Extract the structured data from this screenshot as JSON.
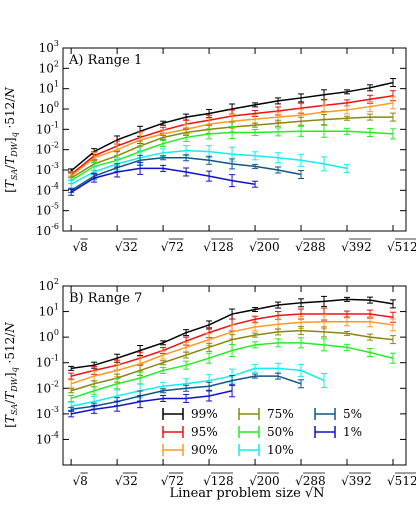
{
  "figure": {
    "shared_xlabel": "Linear problem size √N",
    "x_tick_labels": [
      "√8",
      "√32",
      "√72",
      "√128",
      "√200",
      "√288",
      "√392",
      "√512"
    ]
  },
  "legend": {
    "columns": 3,
    "entries": [
      {
        "name": "99%",
        "color": "#000000"
      },
      {
        "name": "95%",
        "color": "#ee1111"
      },
      {
        "name": "90%",
        "color": "#ff9922"
      },
      {
        "name": "75%",
        "color": "#888811"
      },
      {
        "name": "50%",
        "color": "#22ee22"
      },
      {
        "name": "10%",
        "color": "#11eeee"
      },
      {
        "name": "5%",
        "color": "#115588"
      },
      {
        "name": "1%",
        "color": "#1111cc"
      }
    ]
  },
  "chart_data": [
    {
      "type": "line",
      "title": "A) Range 1",
      "ylabel": "[T_SA/T_DW]_q · 512/N",
      "xlabel": "",
      "x_ticks": [
        8,
        32,
        72,
        128,
        200,
        288,
        392,
        512
      ],
      "x_tick_labels": [
        "√8",
        "√32",
        "√72",
        "√128",
        "√200",
        "√288",
        "√392",
        "√512"
      ],
      "x_scale": "sqrt",
      "y_scale": "log",
      "ylim": [
        1e-06,
        1000
      ],
      "y_ticks": [
        -6,
        -5,
        -4,
        -3,
        -2,
        -1,
        0,
        1,
        2,
        3
      ],
      "error_bars": true,
      "series": [
        {
          "name": "99%",
          "color": "#000000",
          "x": [
            8,
            18,
            32,
            50,
            72,
            98,
            128,
            162,
            200,
            242,
            288,
            338,
            392,
            450,
            512
          ],
          "y": [
            0.0009,
            0.008,
            0.03,
            0.08,
            0.2,
            0.4,
            0.6,
            1.0,
            1.6,
            2.5,
            3.5,
            5,
            7,
            11,
            20
          ]
        },
        {
          "name": "95%",
          "color": "#ee1111",
          "x": [
            8,
            18,
            32,
            50,
            72,
            98,
            128,
            162,
            200,
            242,
            288,
            338,
            392,
            450,
            512
          ],
          "y": [
            0.0006,
            0.005,
            0.015,
            0.04,
            0.09,
            0.18,
            0.28,
            0.45,
            0.6,
            0.8,
            1.1,
            1.5,
            2,
            3,
            4.5
          ]
        },
        {
          "name": "90%",
          "color": "#ff9922",
          "x": [
            8,
            18,
            32,
            50,
            72,
            98,
            128,
            162,
            200,
            242,
            288,
            338,
            392,
            450,
            512
          ],
          "y": [
            0.0005,
            0.004,
            0.01,
            0.03,
            0.06,
            0.1,
            0.18,
            0.25,
            0.32,
            0.4,
            0.5,
            0.7,
            0.9,
            1.3,
            2
          ]
        },
        {
          "name": "75%",
          "color": "#888811",
          "x": [
            8,
            18,
            32,
            50,
            72,
            98,
            128,
            162,
            200,
            242,
            288,
            338,
            392,
            450,
            512
          ],
          "y": [
            0.0004,
            0.002,
            0.005,
            0.015,
            0.04,
            0.07,
            0.1,
            0.13,
            0.16,
            0.2,
            0.25,
            0.3,
            0.35,
            0.4,
            0.4
          ]
        },
        {
          "name": "50%",
          "color": "#22ee22",
          "x": [
            8,
            18,
            32,
            50,
            72,
            98,
            128,
            162,
            200,
            242,
            288,
            338,
            392,
            450,
            512
          ],
          "y": [
            0.0003,
            0.0015,
            0.003,
            0.008,
            0.02,
            0.04,
            0.06,
            0.07,
            0.07,
            0.075,
            0.08,
            0.08,
            0.08,
            0.07,
            0.06
          ]
        },
        {
          "name": "10%",
          "color": "#11eeee",
          "x": [
            8,
            18,
            32,
            50,
            72,
            98,
            128,
            162,
            200,
            242,
            288,
            338,
            392
          ],
          "y": [
            0.0002,
            0.0008,
            0.002,
            0.004,
            0.007,
            0.009,
            0.008,
            0.006,
            0.005,
            0.004,
            0.003,
            0.002,
            0.0012
          ]
        },
        {
          "name": "5%",
          "color": "#115588",
          "x": [
            8,
            18,
            32,
            50,
            72,
            98,
            128,
            162,
            200,
            242,
            288
          ],
          "y": [
            0.0001,
            0.0005,
            0.0013,
            0.003,
            0.004,
            0.004,
            0.003,
            0.002,
            0.0015,
            0.001,
            0.0006
          ]
        },
        {
          "name": "1%",
          "color": "#1111cc",
          "x": [
            8,
            18,
            32,
            50,
            72,
            98,
            128,
            162,
            200
          ],
          "y": [
            8e-05,
            0.0004,
            0.0008,
            0.0012,
            0.0012,
            0.0008,
            0.0005,
            0.0003,
            0.0002
          ]
        }
      ]
    },
    {
      "type": "line",
      "title": "B) Range 7",
      "ylabel": "[T_SA/T_DW]_q · 512/N",
      "xlabel": "Linear problem size √N",
      "x_ticks": [
        8,
        32,
        72,
        128,
        200,
        288,
        392,
        512
      ],
      "x_tick_labels": [
        "√8",
        "√32",
        "√72",
        "√128",
        "√200",
        "√288",
        "√392",
        "√512"
      ],
      "x_scale": "sqrt",
      "y_scale": "log",
      "ylim": [
        1e-05,
        100
      ],
      "y_ticks": [
        -4,
        -3,
        -2,
        -1,
        0,
        1,
        2
      ],
      "error_bars": true,
      "series": [
        {
          "name": "99%",
          "color": "#000000",
          "x": [
            8,
            18,
            32,
            50,
            72,
            98,
            128,
            162,
            200,
            242,
            288,
            338,
            392,
            450,
            512
          ],
          "y": [
            0.06,
            0.08,
            0.15,
            0.3,
            0.6,
            1.5,
            3,
            8,
            12,
            18,
            22,
            25,
            30,
            28,
            20
          ]
        },
        {
          "name": "95%",
          "color": "#ee1111",
          "x": [
            8,
            18,
            32,
            50,
            72,
            98,
            128,
            162,
            200,
            242,
            288,
            338,
            392,
            450,
            512
          ],
          "y": [
            0.03,
            0.05,
            0.08,
            0.15,
            0.3,
            0.7,
            1.5,
            3,
            5,
            7,
            8,
            8,
            8,
            8,
            6
          ]
        },
        {
          "name": "90%",
          "color": "#ff9922",
          "x": [
            8,
            18,
            32,
            50,
            72,
            98,
            128,
            162,
            200,
            242,
            288,
            338,
            392,
            450,
            512
          ],
          "y": [
            0.015,
            0.03,
            0.05,
            0.09,
            0.2,
            0.4,
            0.8,
            1.6,
            2.5,
            3.2,
            3.8,
            4,
            4,
            4,
            3
          ]
        },
        {
          "name": "75%",
          "color": "#888811",
          "x": [
            8,
            18,
            32,
            50,
            72,
            98,
            128,
            162,
            200,
            242,
            288,
            338,
            392,
            450,
            512
          ],
          "y": [
            0.008,
            0.015,
            0.025,
            0.05,
            0.1,
            0.2,
            0.4,
            0.8,
            1.2,
            1.6,
            1.8,
            1.6,
            1.4,
            1.0,
            0.8
          ]
        },
        {
          "name": "50%",
          "color": "#22ee22",
          "x": [
            8,
            18,
            32,
            50,
            72,
            98,
            128,
            162,
            200,
            242,
            288,
            338,
            392,
            450,
            512
          ],
          "y": [
            0.004,
            0.008,
            0.015,
            0.025,
            0.05,
            0.08,
            0.15,
            0.3,
            0.5,
            0.6,
            0.6,
            0.5,
            0.4,
            0.25,
            0.15
          ]
        },
        {
          "name": "10%",
          "color": "#11eeee",
          "x": [
            8,
            18,
            32,
            50,
            72,
            98,
            128,
            162,
            200,
            242,
            288,
            338
          ],
          "y": [
            0.002,
            0.003,
            0.005,
            0.008,
            0.012,
            0.015,
            0.02,
            0.03,
            0.06,
            0.06,
            0.05,
            0.02
          ]
        },
        {
          "name": "5%",
          "color": "#115588",
          "x": [
            8,
            18,
            32,
            50,
            72,
            98,
            128,
            162,
            200,
            242,
            288
          ],
          "y": [
            0.0015,
            0.002,
            0.003,
            0.005,
            0.008,
            0.01,
            0.012,
            0.02,
            0.03,
            0.03,
            0.015
          ]
        },
        {
          "name": "1%",
          "color": "#1111cc",
          "x": [
            8,
            18,
            32,
            50,
            72,
            98,
            128,
            162
          ],
          "y": [
            0.001,
            0.0015,
            0.002,
            0.003,
            0.004,
            0.004,
            0.005,
            0.008
          ]
        }
      ]
    }
  ]
}
